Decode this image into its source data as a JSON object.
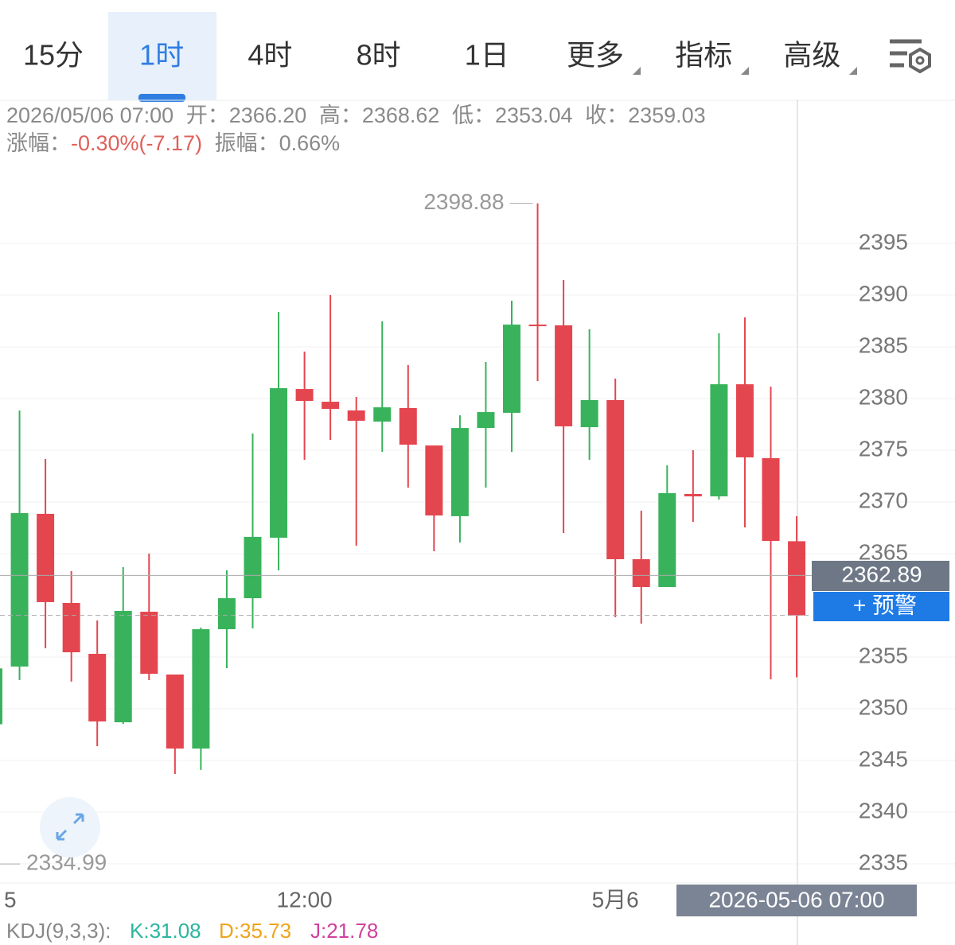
{
  "tabs": [
    "15分",
    "1时",
    "4时",
    "8时",
    "1日",
    "更多",
    "指标",
    "高级"
  ],
  "selected_tab_index": 1,
  "info": {
    "time": "2026/05/06 07:00",
    "open_label": "开：",
    "open": "2366.20",
    "high_label": "高：",
    "high": "2368.62",
    "low_label": "低：",
    "low": "2353.04",
    "close_label": "收：",
    "close": "2359.03",
    "change_label": "涨幅：",
    "change": "-0.30%(-7.17)",
    "amplitude_label": "振幅：",
    "amplitude": "0.66%"
  },
  "chart_data": {
    "type": "candlestick",
    "categories": [
      "5",
      null,
      null,
      null,
      null,
      null,
      null,
      null,
      null,
      null,
      null,
      null,
      "12:00",
      null,
      null,
      null,
      null,
      null,
      null,
      null,
      null,
      null,
      null,
      null,
      "5月6",
      null,
      null,
      null,
      null,
      null,
      null,
      null
    ],
    "open": [
      2348.5,
      2354.08,
      2368.85,
      2360.23,
      2355.31,
      2348.69,
      2359.38,
      2353.31,
      2346.15,
      2357.69,
      2360.69,
      2366.54,
      2380.92,
      2379.69,
      2378.85,
      2377.77,
      2379.08,
      2375.46,
      2368.62,
      2377.15,
      2378.62,
      2387.15,
      2387.08,
      2377.23,
      2379.85,
      2364.46,
      2361.77,
      2370.77,
      2370.54,
      2381.38,
      2374.23,
      2366.2
    ],
    "high": [
      2354,
      2378.85,
      2374.15,
      2363.31,
      2358.54,
      2363.69,
      2365.0,
      2353.31,
      2357.85,
      2363.38,
      2376.62,
      2388.38,
      2384.54,
      2390.0,
      2380.15,
      2387.46,
      2383.23,
      2375.46,
      2378.38,
      2383.54,
      2389.46,
      2398.88,
      2391.46,
      2386.69,
      2381.92,
      2369.15,
      2373.54,
      2375.0,
      2386.31,
      2387.85,
      2381.15,
      2368.62
    ],
    "low": [
      2334.99,
      2352.77,
      2355.85,
      2352.62,
      2346.38,
      2348.54,
      2352.77,
      2343.69,
      2344.08,
      2353.92,
      2357.77,
      2363.38,
      2374.08,
      2376.0,
      2365.77,
      2374.85,
      2371.38,
      2365.23,
      2366.08,
      2371.38,
      2374.85,
      2381.69,
      2367.0,
      2374.08,
      2358.85,
      2358.23,
      2361.77,
      2368.08,
      2370.23,
      2367.54,
      2352.85,
      2353.04
    ],
    "close": [
      2353.9,
      2368.92,
      2360.31,
      2355.46,
      2348.77,
      2359.46,
      2353.38,
      2346.15,
      2357.69,
      2360.69,
      2366.62,
      2381.0,
      2379.77,
      2379.0,
      2377.85,
      2379.15,
      2375.54,
      2368.69,
      2377.15,
      2378.69,
      2387.15,
      2387.08,
      2377.31,
      2379.85,
      2364.46,
      2361.77,
      2370.85,
      2370.54,
      2381.38,
      2374.31,
      2366.23,
      2359.03
    ],
    "up_color": "#38b35b",
    "down_color": "#e4464f",
    "ylim": [
      2333.15,
      2408.85
    ],
    "yticks": [
      2335,
      2340,
      2345,
      2350,
      2355,
      2365,
      2370,
      2375,
      2380,
      2385,
      2390,
      2395
    ],
    "grid": true,
    "last_price": 2362.89,
    "crosshair_label": "2026-05-06 07:00"
  },
  "alert_button": "+ 预警",
  "indicator": {
    "name": "KDJ(9,3,3):",
    "k": "K:31.08",
    "d": "D:35.73",
    "j": "J:21.78"
  }
}
